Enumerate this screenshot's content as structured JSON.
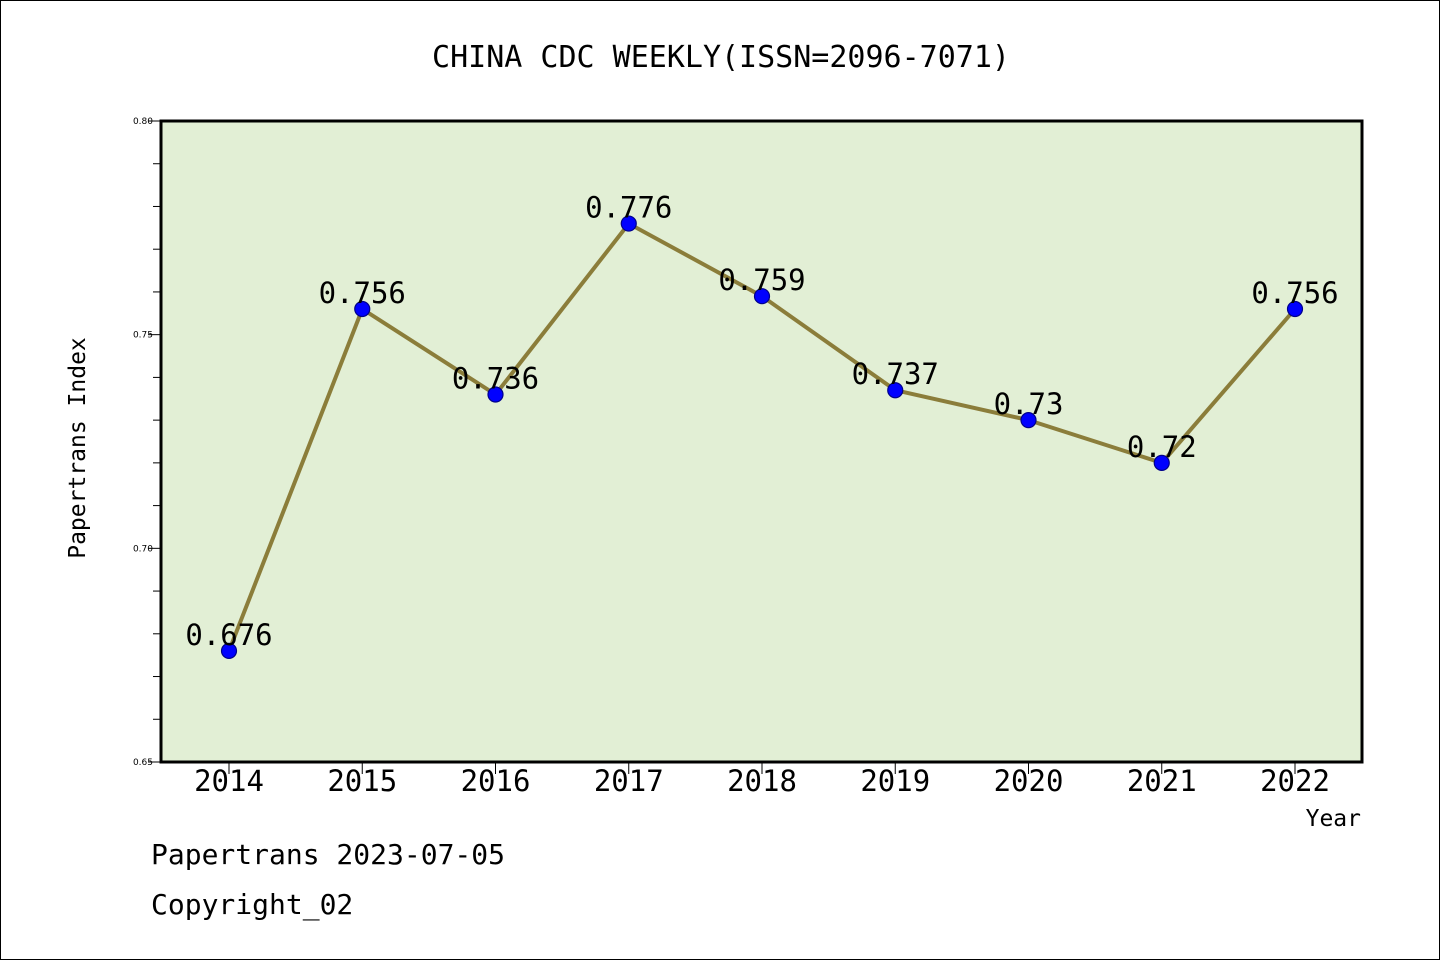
{
  "chart_data": {
    "type": "line",
    "title": "CHINA CDC WEEKLY(ISSN=2096-7071)",
    "xlabel": "Year",
    "ylabel": "Papertrans Index",
    "categories": [
      "2014",
      "2015",
      "2016",
      "2017",
      "2018",
      "2019",
      "2020",
      "2021",
      "2022"
    ],
    "series": [
      {
        "values": [
          0.676,
          0.756,
          0.736,
          0.776,
          0.759,
          0.737,
          0.73,
          0.72,
          0.756
        ]
      }
    ],
    "data_labels": [
      "0.676",
      "0.756",
      "0.736",
      "0.776",
      "0.759",
      "0.737",
      "0.73",
      "0.72",
      "0.756"
    ],
    "ylim": [
      0.65,
      0.8
    ],
    "yticks": [
      "0.65",
      "0.70",
      "0.75",
      "0.80"
    ],
    "grid": false,
    "colors": {
      "plot_background": "#e2efd5",
      "line": "#8b7d3a",
      "marker": "#0000ff",
      "marker_edge": "#00008b"
    }
  },
  "footer": {
    "line1": "Papertrans 2023-07-05",
    "line2": "Copyright_02"
  }
}
